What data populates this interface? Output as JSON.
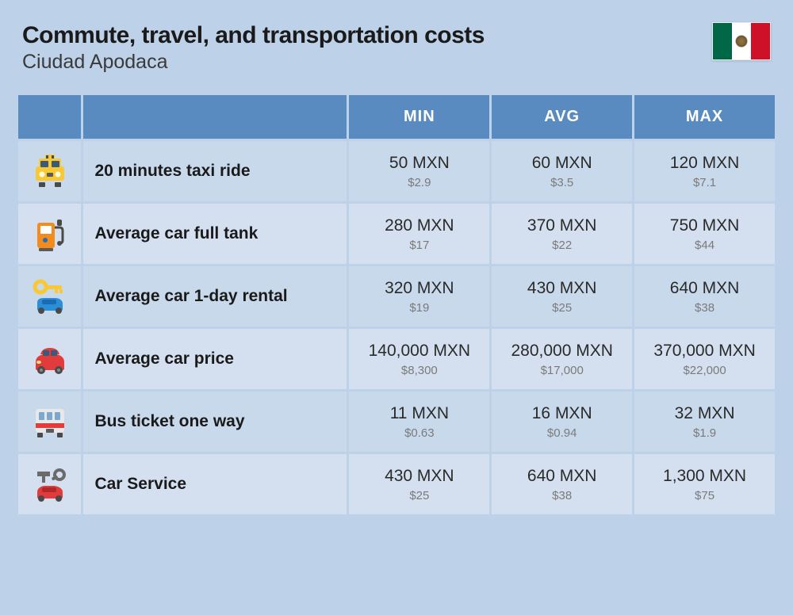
{
  "header": {
    "title": "Commute, travel, and transportation costs",
    "subtitle": "Ciudad Apodaca"
  },
  "flag": {
    "country": "Mexico",
    "stripes": [
      "#006847",
      "#ffffff",
      "#ce1126"
    ]
  },
  "table": {
    "columns": [
      "MIN",
      "AVG",
      "MAX"
    ],
    "header_bg": "#5a8bc0",
    "header_text_color": "#ffffff",
    "header_fontsize": 20,
    "row_bg_a": "#c9d9ec",
    "row_bg_b": "#d4e0ef",
    "label_fontsize": 21,
    "label_fontweight": 800,
    "mxn_fontsize": 21,
    "mxn_color": "#2a2a2a",
    "usd_fontsize": 15,
    "usd_color": "#7a7a7a",
    "icon_col_width": 80,
    "label_col_width": 340,
    "val_col_width": 178,
    "rows": [
      {
        "icon": "taxi",
        "label": "20 minutes taxi ride",
        "min": {
          "mxn": "50 MXN",
          "usd": "$2.9"
        },
        "avg": {
          "mxn": "60 MXN",
          "usd": "$3.5"
        },
        "max": {
          "mxn": "120 MXN",
          "usd": "$7.1"
        }
      },
      {
        "icon": "fuel-pump",
        "label": "Average car full tank",
        "min": {
          "mxn": "280 MXN",
          "usd": "$17"
        },
        "avg": {
          "mxn": "370 MXN",
          "usd": "$22"
        },
        "max": {
          "mxn": "750 MXN",
          "usd": "$44"
        }
      },
      {
        "icon": "car-key",
        "label": "Average car 1-day rental",
        "min": {
          "mxn": "320 MXN",
          "usd": "$19"
        },
        "avg": {
          "mxn": "430 MXN",
          "usd": "$25"
        },
        "max": {
          "mxn": "640 MXN",
          "usd": "$38"
        }
      },
      {
        "icon": "car",
        "label": "Average car price",
        "min": {
          "mxn": "140,000 MXN",
          "usd": "$8,300"
        },
        "avg": {
          "mxn": "280,000 MXN",
          "usd": "$17,000"
        },
        "max": {
          "mxn": "370,000 MXN",
          "usd": "$22,000"
        }
      },
      {
        "icon": "bus",
        "label": "Bus ticket one way",
        "min": {
          "mxn": "11 MXN",
          "usd": "$0.63"
        },
        "avg": {
          "mxn": "16 MXN",
          "usd": "$0.94"
        },
        "max": {
          "mxn": "32 MXN",
          "usd": "$1.9"
        }
      },
      {
        "icon": "car-service",
        "label": "Car Service",
        "min": {
          "mxn": "430 MXN",
          "usd": "$25"
        },
        "avg": {
          "mxn": "640 MXN",
          "usd": "$38"
        },
        "max": {
          "mxn": "1,300 MXN",
          "usd": "$75"
        }
      }
    ]
  },
  "page_bg": "#bdd1e8"
}
